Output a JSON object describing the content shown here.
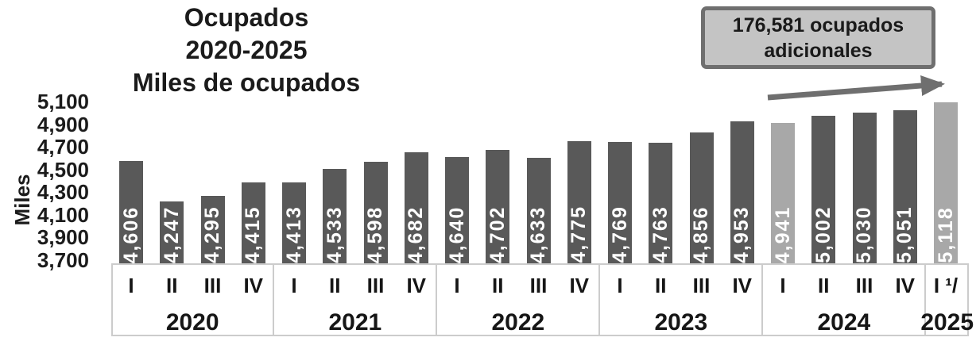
{
  "colors": {
    "bar_default": "#595959",
    "bar_highlight": "#a8a8a8",
    "bar_label": "#ffffff",
    "annotation_fill": "#c4c4c4",
    "annotation_border": "#6f6f6f",
    "arrow": "#6f6f6f",
    "axis_box_border": "#cccccc",
    "text": "#1b1b1b"
  },
  "chart_data": {
    "type": "bar",
    "title_lines": [
      "Ocupados",
      "2020-2025",
      "Miles de ocupados"
    ],
    "title": "Ocupados 2020-2025 Miles de ocupados",
    "ylabel": "Miles",
    "xlabel": "",
    "ylim": [
      3700,
      5100
    ],
    "grid": false,
    "legend": "none",
    "y_ticks": [
      {
        "value": 5100,
        "label": "5,100"
      },
      {
        "value": 4900,
        "label": "4,900"
      },
      {
        "value": 4700,
        "label": "4,700"
      },
      {
        "value": 4500,
        "label": "4,500"
      },
      {
        "value": 4300,
        "label": "4,300"
      },
      {
        "value": 4100,
        "label": "4,100"
      },
      {
        "value": 3900,
        "label": "3,900"
      },
      {
        "value": 3700,
        "label": "3,700"
      }
    ],
    "groups": [
      {
        "year": "2020",
        "bars": [
          {
            "quarter": "I",
            "value": 4606,
            "label": "4,606",
            "highlight": false
          },
          {
            "quarter": "II",
            "value": 4247,
            "label": "4,247",
            "highlight": false
          },
          {
            "quarter": "III",
            "value": 4295,
            "label": "4,295",
            "highlight": false
          },
          {
            "quarter": "IV",
            "value": 4415,
            "label": "4,415",
            "highlight": false
          }
        ]
      },
      {
        "year": "2021",
        "bars": [
          {
            "quarter": "I",
            "value": 4413,
            "label": "4,413",
            "highlight": false
          },
          {
            "quarter": "II",
            "value": 4533,
            "label": "4,533",
            "highlight": false
          },
          {
            "quarter": "III",
            "value": 4598,
            "label": "4,598",
            "highlight": false
          },
          {
            "quarter": "IV",
            "value": 4682,
            "label": "4,682",
            "highlight": false
          }
        ]
      },
      {
        "year": "2022",
        "bars": [
          {
            "quarter": "I",
            "value": 4640,
            "label": "4,640",
            "highlight": false
          },
          {
            "quarter": "II",
            "value": 4702,
            "label": "4,702",
            "highlight": false
          },
          {
            "quarter": "III",
            "value": 4633,
            "label": "4,633",
            "highlight": false
          },
          {
            "quarter": "IV",
            "value": 4775,
            "label": "4,775",
            "highlight": false
          }
        ]
      },
      {
        "year": "2023",
        "bars": [
          {
            "quarter": "I",
            "value": 4769,
            "label": "4,769",
            "highlight": false
          },
          {
            "quarter": "II",
            "value": 4763,
            "label": "4,763",
            "highlight": false
          },
          {
            "quarter": "III",
            "value": 4856,
            "label": "4,856",
            "highlight": false
          },
          {
            "quarter": "IV",
            "value": 4953,
            "label": "4,953",
            "highlight": false
          }
        ]
      },
      {
        "year": "2024",
        "bars": [
          {
            "quarter": "I",
            "value": 4941,
            "label": "4,941",
            "highlight": true
          },
          {
            "quarter": "II",
            "value": 5002,
            "label": "5,002",
            "highlight": false
          },
          {
            "quarter": "III",
            "value": 5030,
            "label": "5,030",
            "highlight": false
          },
          {
            "quarter": "IV",
            "value": 5051,
            "label": "5,051",
            "highlight": false
          }
        ]
      },
      {
        "year": "2025",
        "bars": [
          {
            "quarter": "I ¹/",
            "value": 5118,
            "label": "5,118",
            "highlight": true
          }
        ]
      }
    ],
    "annotation": {
      "line1": "176,581 ocupados",
      "line2": "adicionales"
    }
  }
}
